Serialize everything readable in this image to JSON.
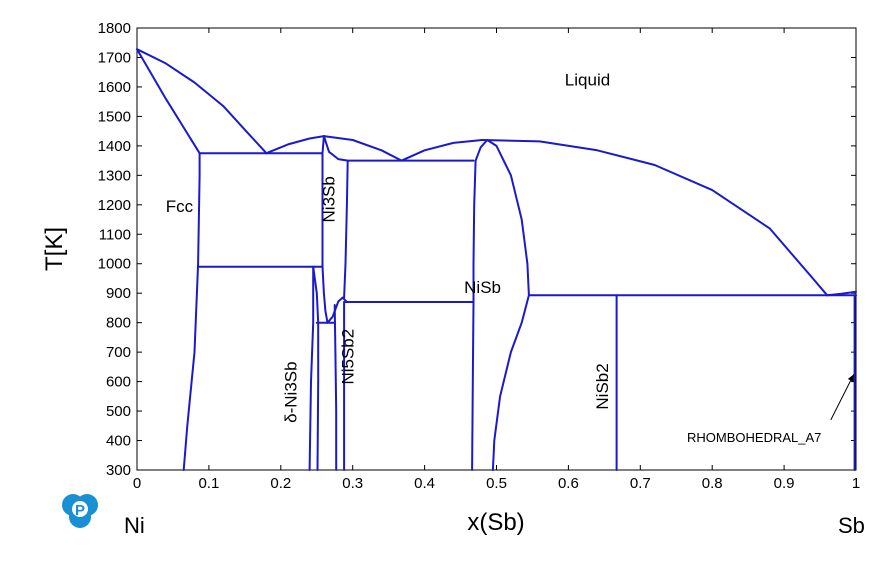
{
  "chart_data": {
    "type": "line",
    "title": "",
    "xlabel": "x(Sb)",
    "ylabel": "T[K]",
    "xlim": [
      0,
      1
    ],
    "ylim": [
      300,
      1800
    ],
    "grid": false,
    "line_color": "#1a1acc",
    "x_ticks": [
      {
        "value": 0,
        "label": "0"
      },
      {
        "value": 0.1,
        "label": "0.1"
      },
      {
        "value": 0.2,
        "label": "0.2"
      },
      {
        "value": 0.3,
        "label": "0.3"
      },
      {
        "value": 0.4,
        "label": "0.4"
      },
      {
        "value": 0.5,
        "label": "0.5"
      },
      {
        "value": 0.6,
        "label": "0.6"
      },
      {
        "value": 0.7,
        "label": "0.7"
      },
      {
        "value": 0.8,
        "label": "0.8"
      },
      {
        "value": 0.9,
        "label": "0.9"
      },
      {
        "value": 1,
        "label": "1"
      }
    ],
    "y_ticks": [
      {
        "value": 300,
        "label": "300"
      },
      {
        "value": 400,
        "label": "400"
      },
      {
        "value": 500,
        "label": "500"
      },
      {
        "value": 600,
        "label": "600"
      },
      {
        "value": 700,
        "label": "700"
      },
      {
        "value": 800,
        "label": "800"
      },
      {
        "value": 900,
        "label": "900"
      },
      {
        "value": 1000,
        "label": "1000"
      },
      {
        "value": 1100,
        "label": "1100"
      },
      {
        "value": 1200,
        "label": "1200"
      },
      {
        "value": 1300,
        "label": "1300"
      },
      {
        "value": 1400,
        "label": "1400"
      },
      {
        "value": 1500,
        "label": "1500"
      },
      {
        "value": 1600,
        "label": "1600"
      },
      {
        "value": 1700,
        "label": "1700"
      },
      {
        "value": 1800,
        "label": "1800"
      }
    ],
    "element_labels": {
      "left": "Ni",
      "right": "Sb"
    },
    "phase_labels": [
      {
        "text": "Liquid",
        "x": 0.595,
        "y": 1605,
        "rotate": 0,
        "cls": "phase-label"
      },
      {
        "text": "Fcc",
        "x": 0.04,
        "y": 1175,
        "rotate": 0,
        "cls": "phase-label"
      },
      {
        "text": "Ni3Sb",
        "x": 0.275,
        "y": 1140,
        "rotate": -90,
        "cls": "phase-label"
      },
      {
        "text": "NiSb",
        "x": 0.455,
        "y": 900,
        "rotate": 0,
        "cls": "phase-label"
      },
      {
        "text": "δ-Ni3Sb",
        "x": 0.222,
        "y": 460,
        "rotate": -90,
        "cls": "phase-label"
      },
      {
        "text": "Ni5Sb2",
        "x": 0.301,
        "y": 590,
        "rotate": -90,
        "cls": "phase-label"
      },
      {
        "text": "NiSb2",
        "x": 0.655,
        "y": 505,
        "rotate": -90,
        "cls": "phase-label"
      },
      {
        "text": "RHOMBOHEDRAL_A7",
        "x": 0.765,
        "y": 395,
        "rotate": 0,
        "cls": "small-label"
      }
    ],
    "annotation_arrow": {
      "from": [
        0.965,
        470
      ],
      "to": [
        0.997,
        625
      ]
    },
    "series": [
      {
        "name": "liquidus-ni-side",
        "points": [
          [
            0,
            1728
          ],
          [
            0.04,
            1680
          ],
          [
            0.08,
            1615
          ],
          [
            0.12,
            1535
          ],
          [
            0.15,
            1455
          ],
          [
            0.18,
            1375
          ]
        ]
      },
      {
        "name": "fcc-solidus",
        "points": [
          [
            0,
            1728
          ],
          [
            0.04,
            1560
          ],
          [
            0.087,
            1375
          ]
        ]
      },
      {
        "name": "fcc-solvus",
        "points": [
          [
            0.087,
            1375
          ],
          [
            0.087,
            1300
          ],
          [
            0.085,
            1000
          ],
          [
            0.08,
            700
          ],
          [
            0.07,
            450
          ],
          [
            0.065,
            300
          ]
        ]
      },
      {
        "name": "eutectic-1375",
        "points": [
          [
            0.087,
            1375
          ],
          [
            0.258,
            1375
          ]
        ]
      },
      {
        "name": "liquidus-ni3sb-left",
        "points": [
          [
            0.18,
            1375
          ],
          [
            0.21,
            1405
          ],
          [
            0.24,
            1425
          ],
          [
            0.26,
            1433
          ]
        ]
      },
      {
        "name": "liquidus-ni3sb-right",
        "points": [
          [
            0.26,
            1433
          ],
          [
            0.3,
            1420
          ],
          [
            0.34,
            1385
          ],
          [
            0.368,
            1350
          ]
        ]
      },
      {
        "name": "ni3sb-left-boundary",
        "points": [
          [
            0.26,
            1433
          ],
          [
            0.258,
            1375
          ],
          [
            0.258,
            1200
          ],
          [
            0.258,
            990
          ]
        ]
      },
      {
        "name": "ni3sb-right-boundary",
        "points": [
          [
            0.26,
            1433
          ],
          [
            0.267,
            1380
          ],
          [
            0.28,
            1355
          ],
          [
            0.293,
            1350
          ],
          [
            0.292,
            1200
          ],
          [
            0.29,
            1000
          ],
          [
            0.288,
            885
          ]
        ]
      },
      {
        "name": "eutectoid-990",
        "points": [
          [
            0.085,
            990
          ],
          [
            0.258,
            990
          ]
        ]
      },
      {
        "name": "ni3sb-lower-left",
        "points": [
          [
            0.258,
            990
          ],
          [
            0.26,
            900
          ],
          [
            0.262,
            840
          ],
          [
            0.265,
            800
          ]
        ]
      },
      {
        "name": "peritectic-1350",
        "points": [
          [
            0.293,
            1350
          ],
          [
            0.468,
            1350
          ]
        ]
      },
      {
        "name": "liquidus-nisb-left",
        "points": [
          [
            0.368,
            1350
          ],
          [
            0.4,
            1385
          ],
          [
            0.44,
            1410
          ],
          [
            0.48,
            1420
          ]
        ]
      },
      {
        "name": "liquidus-nisb-right",
        "points": [
          [
            0.48,
            1420
          ],
          [
            0.56,
            1415
          ],
          [
            0.64,
            1385
          ],
          [
            0.72,
            1335
          ],
          [
            0.8,
            1250
          ],
          [
            0.88,
            1120
          ],
          [
            0.94,
            950
          ],
          [
            0.96,
            893
          ]
        ]
      },
      {
        "name": "liquidus-sb-end",
        "points": [
          [
            0.96,
            893
          ],
          [
            0.98,
            898
          ],
          [
            1.0,
            905
          ]
        ]
      },
      {
        "name": "nisb-left-boundary",
        "points": [
          [
            0.487,
            1420
          ],
          [
            0.478,
            1395
          ],
          [
            0.471,
            1350
          ],
          [
            0.469,
            1200
          ],
          [
            0.468,
            1000
          ],
          [
            0.468,
            870
          ],
          [
            0.467,
            600
          ],
          [
            0.466,
            300
          ]
        ]
      },
      {
        "name": "nisb-right-boundary",
        "points": [
          [
            0.487,
            1420
          ],
          [
            0.5,
            1400
          ],
          [
            0.52,
            1300
          ],
          [
            0.535,
            1150
          ],
          [
            0.543,
            1000
          ],
          [
            0.545,
            893
          ],
          [
            0.535,
            800
          ],
          [
            0.52,
            700
          ],
          [
            0.505,
            550
          ],
          [
            0.497,
            400
          ],
          [
            0.495,
            300
          ]
        ]
      },
      {
        "name": "eutectic-893",
        "points": [
          [
            0.545,
            893
          ],
          [
            1.0,
            893
          ]
        ]
      },
      {
        "name": "nisb2-line",
        "points": [
          [
            0.667,
            893
          ],
          [
            0.667,
            300
          ]
        ]
      },
      {
        "name": "rhombohedral-edge",
        "points": [
          [
            0.998,
            893
          ],
          [
            0.998,
            300
          ]
        ]
      },
      {
        "name": "ni5sb2-peritectic-870",
        "points": [
          [
            0.288,
            870
          ],
          [
            0.468,
            870
          ]
        ]
      },
      {
        "name": "ni5sb2-left",
        "points": [
          [
            0.275,
            860
          ],
          [
            0.276,
            700
          ],
          [
            0.277,
            500
          ],
          [
            0.277,
            300
          ]
        ]
      },
      {
        "name": "ni5sb2-right",
        "points": [
          [
            0.288,
            870
          ],
          [
            0.288,
            700
          ],
          [
            0.288,
            500
          ],
          [
            0.288,
            300
          ]
        ]
      },
      {
        "name": "ni5sb2-top-curve",
        "points": [
          [
            0.265,
            800
          ],
          [
            0.272,
            820
          ],
          [
            0.28,
            872
          ],
          [
            0.286,
            885
          ],
          [
            0.292,
            870
          ]
        ]
      },
      {
        "name": "delta-eutectoid-800",
        "points": [
          [
            0.25,
            800
          ],
          [
            0.275,
            800
          ]
        ]
      },
      {
        "name": "delta-left",
        "points": [
          [
            0.245,
            990
          ],
          [
            0.245,
            800
          ],
          [
            0.242,
            600
          ],
          [
            0.24,
            300
          ]
        ]
      },
      {
        "name": "delta-right",
        "points": [
          [
            0.245,
            990
          ],
          [
            0.25,
            900
          ],
          [
            0.252,
            800
          ],
          [
            0.252,
            600
          ],
          [
            0.251,
            300
          ]
        ]
      }
    ]
  },
  "logo": {
    "letter": "P",
    "color": "#1a8fd4"
  }
}
